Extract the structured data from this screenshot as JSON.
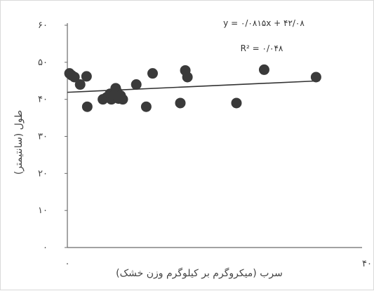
{
  "chart_data": {
    "type": "scatter",
    "title": "",
    "xlabel": "سرب (میکروگرم بر کیلوگرم وزن خشک)",
    "ylabel": "طول (سانتیمتر)",
    "xlim": [
      0,
      40
    ],
    "ylim": [
      0,
      60
    ],
    "x_ticks": [
      {
        "value": 0,
        "label": "۰"
      },
      {
        "value": 40,
        "label": "۴۰"
      }
    ],
    "y_ticks": [
      {
        "value": 0,
        "label": "۰"
      },
      {
        "value": 10,
        "label": "۱۰"
      },
      {
        "value": 20,
        "label": "۲۰"
      },
      {
        "value": 30,
        "label": "۳۰"
      },
      {
        "value": 40,
        "label": "۴۰"
      },
      {
        "value": 50,
        "label": "۵۰"
      },
      {
        "value": 60,
        "label": "۶۰"
      }
    ],
    "points": [
      {
        "x": 0.3,
        "y": 47.0
      },
      {
        "x": 0.6,
        "y": 46.5
      },
      {
        "x": 1.0,
        "y": 46.0
      },
      {
        "x": 1.8,
        "y": 44.0
      },
      {
        "x": 2.7,
        "y": 46.2
      },
      {
        "x": 2.8,
        "y": 38.0
      },
      {
        "x": 5.0,
        "y": 40.0
      },
      {
        "x": 5.5,
        "y": 40.5
      },
      {
        "x": 6.0,
        "y": 41.5
      },
      {
        "x": 6.2,
        "y": 40.0
      },
      {
        "x": 6.5,
        "y": 41.0
      },
      {
        "x": 6.8,
        "y": 43.0
      },
      {
        "x": 7.0,
        "y": 42.0
      },
      {
        "x": 7.2,
        "y": 40.2
      },
      {
        "x": 7.5,
        "y": 41.0
      },
      {
        "x": 7.8,
        "y": 40.0
      },
      {
        "x": 9.7,
        "y": 44.0
      },
      {
        "x": 11.1,
        "y": 38.0
      },
      {
        "x": 12.0,
        "y": 47.0
      },
      {
        "x": 15.9,
        "y": 39.0
      },
      {
        "x": 16.6,
        "y": 47.8
      },
      {
        "x": 16.9,
        "y": 46.0
      },
      {
        "x": 23.8,
        "y": 39.0
      },
      {
        "x": 27.7,
        "y": 48.0
      },
      {
        "x": 35.0,
        "y": 46.0
      }
    ],
    "trendline": {
      "x": [
        0,
        35.5
      ],
      "y": [
        41.9,
        45.0
      ]
    },
    "equation": "y = ۰/۰۸۱۵x + ۴۲/۰۸",
    "r_squared": "R² = ۰/۰۴۸",
    "grid": false,
    "colors": {
      "points": "#3a3a3a",
      "line": "#333333",
      "axis": "#6b6b6b"
    }
  }
}
